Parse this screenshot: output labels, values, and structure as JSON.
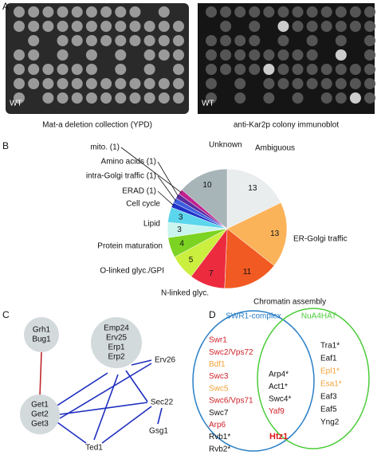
{
  "panel_labels": [
    "A",
    "B",
    "C",
    "D"
  ],
  "panel_a": {
    "images": [
      {
        "corner_label": "WT",
        "caption": "Mat-a deletion collection (YPD)"
      },
      {
        "corner_label": "WT",
        "caption": "anti-Kar2p colony immunoblot"
      }
    ]
  },
  "chart_data": {
    "type": "pie",
    "categories": [
      "Ambiguous",
      "ER-Golgi traffic",
      "Chromatin assembly",
      "N-linked glyc.",
      "O-linked glyc./GPI",
      "Protein maturation",
      "Lipid",
      "Cell cycle",
      "ERAD (1)",
      "intra-Golgi traffic (1)",
      "Amino acids (1)",
      "mito. (1)",
      "Unknown"
    ],
    "values": [
      13,
      13,
      11,
      7,
      5,
      4,
      3,
      3,
      1,
      1,
      1,
      1,
      10
    ],
    "value_labels": [
      "13",
      "13",
      "11",
      "7",
      "5",
      "4",
      "3",
      "3",
      null,
      null,
      null,
      null,
      "10"
    ],
    "colors": [
      "#e9eded",
      "#fbb35a",
      "#f15a22",
      "#ec2b3f",
      "#cbef3e",
      "#7dd322",
      "#c9f5ee",
      "#5cd6ec",
      "#1f32c8",
      "#3d5fe0",
      "#5b2ca0",
      "#c0228f",
      "#a7b4b8"
    ]
  },
  "panel_c": {
    "nodes": [
      {
        "lines": [
          "Grh1",
          "Bug1"
        ]
      },
      {
        "lines": [
          "Emp24",
          "Erv25",
          "Erp1",
          "Erp2"
        ]
      },
      {
        "lines": [
          "Get1",
          "Get2",
          "Get3"
        ]
      },
      {
        "lines": [
          "Erv26"
        ]
      },
      {
        "lines": [
          "Sec22"
        ]
      },
      {
        "lines": [
          "Gsg1"
        ]
      },
      {
        "lines": [
          "Ted1"
        ]
      }
    ]
  },
  "panel_d": {
    "sets": [
      {
        "name": "SWR1-complex",
        "color": "#2b7fc6"
      },
      {
        "name": "NuA4HAT",
        "color": "#4ccc3a"
      }
    ],
    "left": [
      {
        "text": "Swr1",
        "color": "#d0212a"
      },
      {
        "text": "Swc2/Vps72",
        "color": "#d0212a"
      },
      {
        "text": "Bdf1",
        "color": "#f2a33a"
      },
      {
        "text": "Swc3",
        "color": "#d0212a"
      },
      {
        "text": "Swc5",
        "color": "#f2a33a"
      },
      {
        "text": "Swc6/Vps71",
        "color": "#d0212a"
      },
      {
        "text": "Swc7",
        "color": "#111111"
      },
      {
        "text": "Arp6",
        "color": "#d0212a"
      },
      {
        "text": "Rvb1*",
        "color": "#111111"
      },
      {
        "text": "Rvb2*",
        "color": "#111111"
      }
    ],
    "middle": [
      {
        "text": "Arp4*",
        "color": "#111111"
      },
      {
        "text": "Act1*",
        "color": "#111111"
      },
      {
        "text": "Swc4*",
        "color": "#111111"
      },
      {
        "text": "Yaf9",
        "color": "#d0212a"
      }
    ],
    "right": [
      {
        "text": "Tra1*",
        "color": "#111111"
      },
      {
        "text": "Eaf1",
        "color": "#111111"
      },
      {
        "text": "Epl1*",
        "color": "#f2a33a"
      },
      {
        "text": "Esa1*",
        "color": "#f2a33a"
      },
      {
        "text": "Eaf3",
        "color": "#111111"
      },
      {
        "text": "Eaf5",
        "color": "#111111"
      },
      {
        "text": "Yng2",
        "color": "#111111"
      }
    ],
    "highlight": {
      "text": "Htz1",
      "color": "#e0141c"
    }
  }
}
